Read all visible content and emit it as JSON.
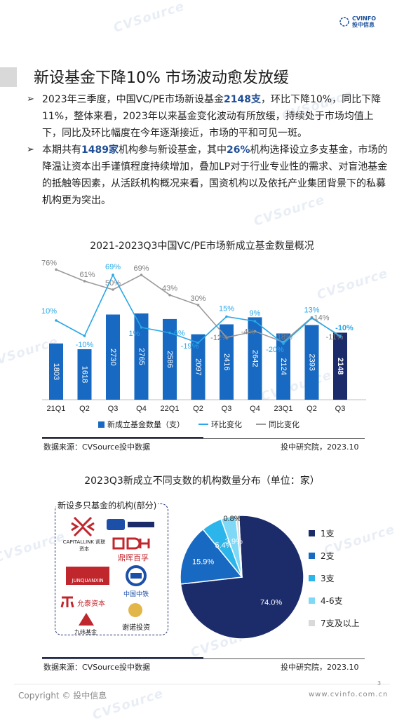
{
  "header": {
    "logo_line1": "CVINFO",
    "logo_line2": "投中信息"
  },
  "watermark": "CVSource",
  "title": "新设基金下降10% 市场波动愈发放缓",
  "bullets": [
    {
      "p1": "2023年三季度，中国VC/PE市场新设基金",
      "h1": "2148支",
      "p2": "，环比下降10%，同比下降11%，整体来看，2023年以来基金变化波动有所放缓，持续处于市场均值上下，同比及环比幅度在今年逐渐接近，市场的平和可见一斑。"
    },
    {
      "p1": "本期共有",
      "h1": "1489家",
      "p2": "机构参与新设基金，其中",
      "h2": "26%",
      "p3": "机构选择设立多支基金，市场的降温让资本出手谨慎程度持续增加，叠加LP对于行业专业性的需求、对盲池基金的抵触等因素，从活跃机构概况来看，国资机构以及依托产业集团背景下的私募机构更为突出。"
    }
  ],
  "chart1": {
    "title": "2021-2023Q3中国VC/PE市场新成立基金数量概况",
    "legend": {
      "bar": "新成立基金数量（支）",
      "qoq": "环比变化",
      "yoy": "同比变化"
    },
    "source_left": "数据来源：CVSource投中数据",
    "source_right": "投中研究院，2023.10"
  },
  "chart_data": [
    {
      "type": "bar",
      "categories": [
        "21Q1",
        "Q2",
        "Q3",
        "Q4",
        "22Q1",
        "Q2",
        "Q3",
        "Q4",
        "23Q1",
        "Q2",
        "Q3"
      ],
      "series": [
        {
          "name": "新成立基金数量（支）",
          "type": "bar",
          "values": [
            1803,
            1618,
            2730,
            2765,
            2586,
            2097,
            2416,
            2642,
            2124,
            2393,
            2148
          ],
          "labels": [
            "1803",
            "1618",
            "2730",
            "2765",
            "2586",
            "2097",
            "2416",
            "2642",
            "2124",
            "2393",
            "2148"
          ]
        },
        {
          "name": "环比变化",
          "type": "line",
          "values": [
            10,
            -10,
            69,
            1,
            -6,
            -19,
            15,
            9,
            -20,
            13,
            -10
          ],
          "labels": [
            "10%",
            "-10%",
            "69%",
            "1%",
            "-6%",
            "-19%",
            "15%",
            "9%",
            "-20%",
            "13%",
            "-10%"
          ]
        },
        {
          "name": "同比变化",
          "type": "line",
          "values": [
            76,
            61,
            50,
            69,
            43,
            30,
            -12,
            -4,
            -18,
            14,
            -11
          ],
          "labels": [
            "76%",
            "61%",
            "50%",
            "69%",
            "43%",
            "30%",
            "-12%",
            "-4%",
            "-18%",
            "14%",
            "-11%"
          ]
        }
      ],
      "colors": {
        "bar": "#1769c2",
        "bar_last": "#1c2c6b",
        "qoq": "#2aa7e8",
        "yoy": "#9a9a9a"
      }
    },
    {
      "type": "pie",
      "title": "2023Q3新成立不同支数的机构数量分布（单位：家）",
      "categories": [
        "1支",
        "2支",
        "3支",
        "4-6支",
        "7支及以上"
      ],
      "values": [
        74.0,
        15.9,
        5.4,
        3.9,
        0.8
      ],
      "labels": [
        "74.0%",
        "15.9%",
        "5.4%",
        "3.9%",
        "0.8%"
      ],
      "colors": [
        "#1c2c6b",
        "#1769c2",
        "#2cb5ea",
        "#7fd8f5",
        "#d9d9d9"
      ]
    }
  ],
  "chart2": {
    "title": "2023Q3新成立不同支数的机构数量分布（单位：家）",
    "panel_title": "新设多只基金的机构(部分)",
    "orgs": [
      "CAPITALLINK 凯联资本",
      "鼎晖百孚",
      "JUNQUANXIN",
      "中国中铁",
      "允泰资本",
      "九纬基金",
      "谢诺投资"
    ],
    "source_left": "数据来源：CVSource投中数据",
    "source_right": "投中研究院，2023.10"
  },
  "footer": {
    "copyright": "Copyright © 投中信息",
    "url": "www.cvinfo.com.cn",
    "page": "3"
  }
}
